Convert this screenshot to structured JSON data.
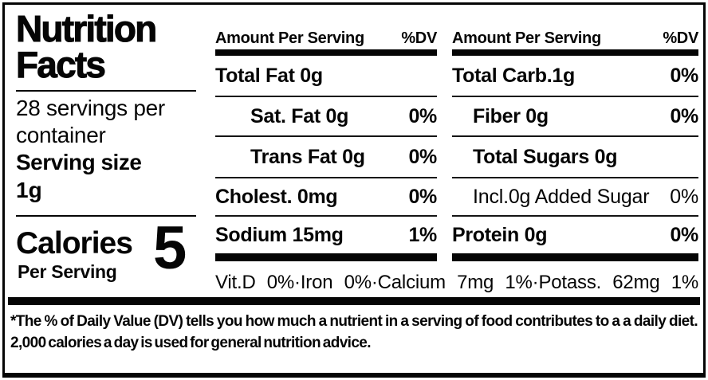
{
  "label": {
    "title_line1": "Nutrition",
    "title_line2": "Facts",
    "servings_per_container": "28 servings per container",
    "serving_size_label": "Serving size",
    "serving_size_value": "1g",
    "calories_label": "Calories",
    "calories_sublabel": "Per Serving",
    "calories_value": "5"
  },
  "fat_panel": {
    "header_amount": "Amount Per Serving",
    "header_dv": "%DV",
    "rows": [
      {
        "name": "Total Fat 0g",
        "dv": ""
      },
      {
        "name": "Sat. Fat 0g",
        "dv": "0%"
      },
      {
        "name": "Trans Fat 0g",
        "dv": "0%"
      },
      {
        "name": "Cholest. 0mg",
        "dv": "0%"
      },
      {
        "name": "Sodium 15mg",
        "dv": "1%"
      }
    ]
  },
  "carb_panel": {
    "header_amount": "Amount Per Serving",
    "header_dv": "%DV",
    "rows": [
      {
        "name": "Total Carb.1g",
        "dv": "0%"
      },
      {
        "name": "Fiber 0g",
        "dv": "0%"
      },
      {
        "name": "Total Sugars 0g",
        "dv": ""
      },
      {
        "name": "Incl.0g Added Sugar",
        "dv": "0%"
      },
      {
        "name": "Protein 0g",
        "dv": "0%"
      }
    ]
  },
  "micronutrients_line": "Vit.D 0%·Iron 0%·Calcium 7mg 1%·Potass. 62mg 1%",
  "footnote": "*The % of Daily Value (DV) tells you how much a nutrient in a serving of food contributes to a a daily diet. 2,000 calories a day is used for general nutrition advice.",
  "colors": {
    "ink": "#050505",
    "paper": "#ffffff"
  }
}
